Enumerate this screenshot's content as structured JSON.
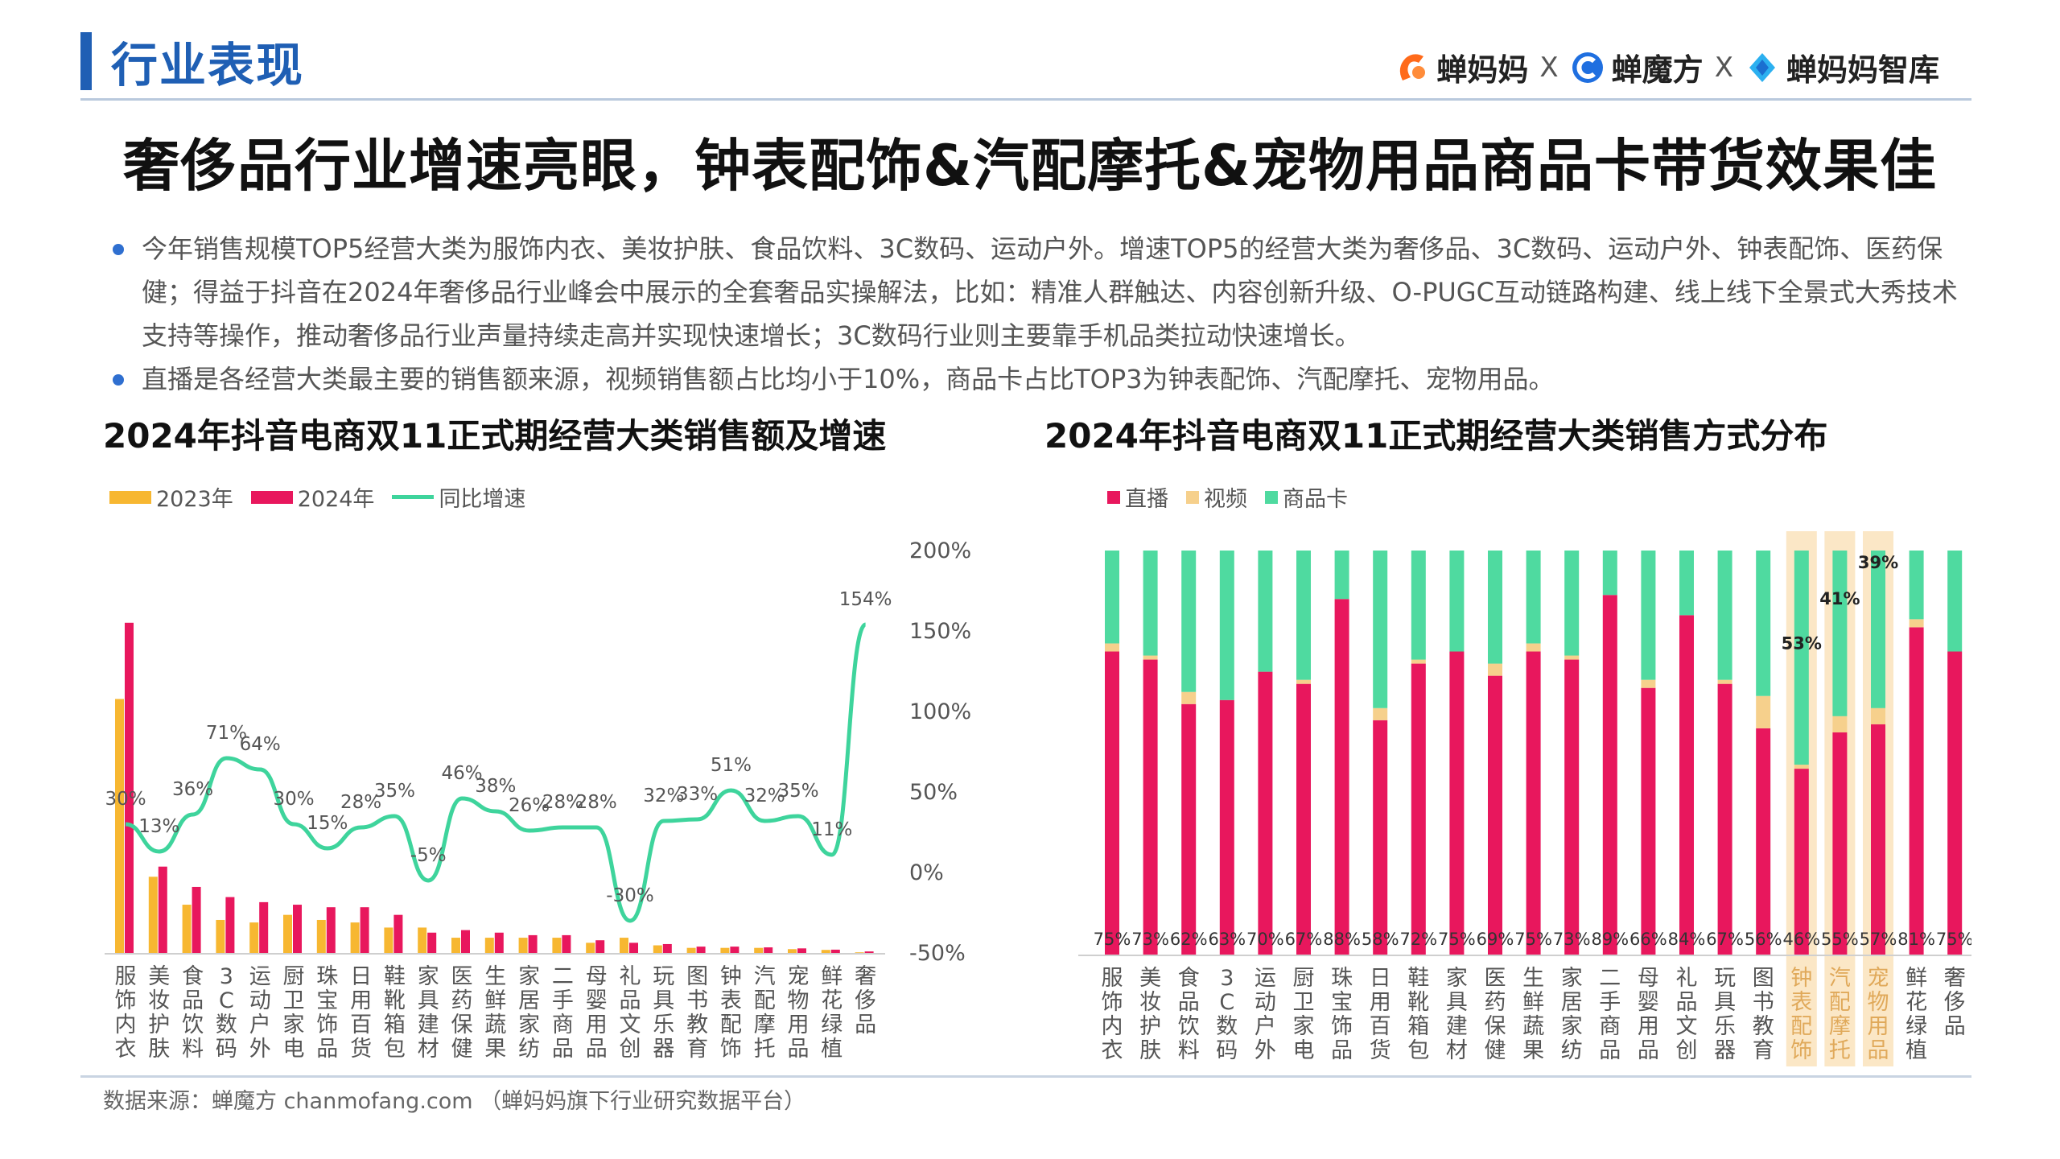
{
  "header": {
    "section_title": "行业表现",
    "brands": [
      "蝉妈妈",
      "蝉魔方",
      "蝉妈妈智库"
    ],
    "separator": "X",
    "headline": "奢侈品行业增速亮眼，钟表配饰&汽配摩托&宠物用品商品卡带货效果佳"
  },
  "bullets": [
    "今年销售规模TOP5经营大类为服饰内衣、美妆护肤、食品饮料、3C数码、运动户外。增速TOP5的经营大类为奢侈品、3C数码、运动户外、钟表配饰、医药保健；得益于抖音在2024年奢侈品行业峰会中展示的全套奢品实操解法，比如：精准人群触达、内容创新升级、O-PUGC互动链路构建、线上线下全景式大秀技术支持等操作，推动奢侈品行业声量持续走高并实现快速增长；3C数码行业则主要靠手机品类拉动快速增长。",
    "直播是各经营大类最主要的销售额来源，视频销售额占比均小于10%，商品卡占比TOP3为钟表配饰、汽配摩托、宠物用品。"
  ],
  "footer": {
    "source": "数据来源：蝉魔方 chanmofang.com （蝉妈妈旗下行业研究数据平台）"
  },
  "colors": {
    "y2023": "#f7b731",
    "y2024": "#e8175d",
    "growth": "#3ed49c",
    "live": "#e8175d",
    "video": "#f6d08c",
    "card": "#4fdaa0",
    "highlight": "#fbe7c6",
    "accent": "#1f5fb4"
  },
  "chart_data": [
    {
      "type": "bar+line",
      "title": "2024年抖音电商双11正式期经营大类销售额及增速",
      "legend": [
        "2023年",
        "2024年",
        "同比增速"
      ],
      "categories": [
        "服饰内衣",
        "美妆护肤",
        "食品饮料",
        "3C数码",
        "运动户外",
        "厨卫家电",
        "珠宝饰品",
        "日用百货",
        "鞋靴箱包",
        "家具建材",
        "医药保健",
        "生鲜蔬果",
        "家居家纺",
        "二手商品",
        "母婴用品",
        "礼品文创",
        "玩具乐器",
        "图书教育",
        "钟表配饰",
        "汽配摩托",
        "宠物用品",
        "鲜花绿植",
        "奢侈品"
      ],
      "series": [
        {
          "name": "2023年",
          "values": [
            100,
            30,
            19,
            13,
            12,
            15,
            13,
            12,
            10,
            10,
            6,
            6,
            6,
            6,
            4,
            6,
            3,
            2,
            2,
            2,
            1.5,
            1.2,
            0.25
          ]
        },
        {
          "name": "2024年",
          "values": [
            130,
            34,
            26,
            22,
            20,
            19,
            18,
            18,
            15,
            8,
            9,
            8,
            7,
            7,
            5,
            4,
            3.5,
            2.5,
            2.5,
            2.2,
            1.8,
            1.3,
            0.6
          ]
        },
        {
          "name": "同比增速",
          "axis": "right",
          "values": [
            30,
            13,
            36,
            71,
            64,
            30,
            15,
            28,
            35,
            -5,
            46,
            38,
            26,
            28,
            28,
            -30,
            32,
            33,
            51,
            32,
            35,
            11,
            154
          ]
        }
      ],
      "data_labels": [
        "30%",
        "13%",
        "36%",
        "71%",
        "64%",
        "30%",
        "15%",
        "28%",
        "35%",
        "-5%",
        "46%",
        "38%",
        "26%",
        "28%",
        "28%",
        "-30%",
        "32%",
        "33%",
        "51%",
        "32%",
        "35%",
        "11%",
        "154%"
      ],
      "y2_ticks": [
        "200%",
        "150%",
        "100%",
        "50%",
        "0%",
        "-50%"
      ],
      "y2lim": [
        -50,
        200
      ]
    },
    {
      "type": "stacked-bar",
      "title": "2024年抖音电商双11正式期经营大类销售方式分布",
      "legend": [
        "直播",
        "视频",
        "商品卡"
      ],
      "categories": [
        "服饰内衣",
        "美妆护肤",
        "食品饮料",
        "3C数码",
        "运动户外",
        "厨卫家电",
        "珠宝饰品",
        "日用百货",
        "鞋靴箱包",
        "家具建材",
        "医药保健",
        "生鲜蔬果",
        "家居家纺",
        "二手商品",
        "母婴用品",
        "礼品文创",
        "玩具乐器",
        "图书教育",
        "钟表配饰",
        "汽配摩托",
        "宠物用品",
        "鲜花绿植",
        "奢侈品"
      ],
      "series": [
        {
          "name": "直播",
          "values": [
            75,
            73,
            62,
            63,
            70,
            67,
            88,
            58,
            72,
            75,
            69,
            75,
            73,
            89,
            66,
            84,
            67,
            56,
            46,
            55,
            57,
            81,
            75
          ]
        },
        {
          "name": "视频",
          "values": [
            2,
            1,
            3,
            0,
            0,
            1,
            0,
            3,
            1,
            0,
            3,
            2,
            1,
            0,
            2,
            0,
            1,
            8,
            1,
            4,
            4,
            2,
            0
          ]
        },
        {
          "name": "商品卡",
          "values": [
            23,
            26,
            35,
            37,
            30,
            32,
            12,
            39,
            27,
            25,
            28,
            23,
            26,
            11,
            32,
            16,
            32,
            36,
            53,
            41,
            39,
            17,
            25
          ]
        }
      ],
      "live_labels": [
        "75%",
        "73%",
        "62%",
        "63%",
        "70%",
        "67%",
        "88%",
        "58%",
        "72%",
        "75%",
        "69%",
        "75%",
        "73%",
        "89%",
        "66%",
        "84%",
        "67%",
        "56%",
        "46%",
        "55%",
        "57%",
        "81%",
        "75%"
      ],
      "highlight": [
        "钟表配饰",
        "汽配摩托",
        "宠物用品"
      ],
      "highlight_labels": [
        "53%",
        "41%",
        "39%"
      ],
      "ylim": [
        0,
        100
      ]
    }
  ]
}
